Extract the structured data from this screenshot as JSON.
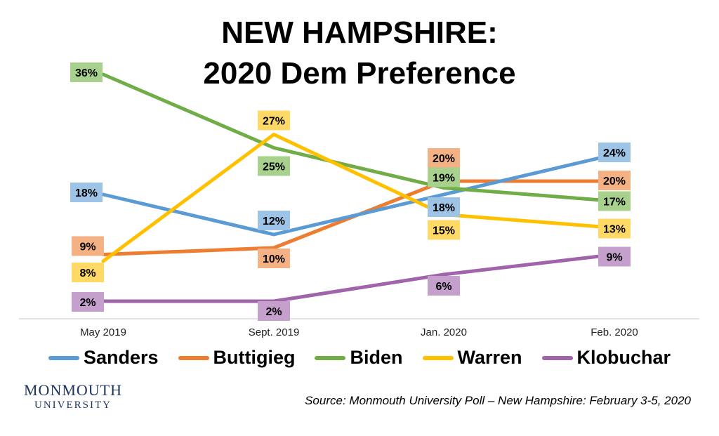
{
  "title_line1": "NEW HAMPSHIRE:",
  "title_line2": "2020 Dem Preference",
  "source": "Source:  Monmouth University Poll – New Hampshire: February 3-5, 2020",
  "logo": {
    "line1": "MONMOUTH",
    "line2": "UNIVERSITY"
  },
  "chart_data": {
    "type": "line",
    "title": "NEW HAMPSHIRE: 2020 Dem Preference",
    "categories": [
      "May 2019",
      "Sept. 2019",
      "Jan. 2020",
      "Feb. 2020"
    ],
    "ylim": [
      0,
      40
    ],
    "grid": false,
    "legend_position": "bottom",
    "series": [
      {
        "name": "Sanders",
        "color": "#5b9bd5",
        "label_color": "#9dc3e6",
        "values": [
          18,
          12,
          18,
          24
        ]
      },
      {
        "name": "Buttigieg",
        "color": "#ed7d31",
        "label_color": "#f4b183",
        "values": [
          9,
          10,
          20,
          20
        ]
      },
      {
        "name": "Biden",
        "color": "#70ad47",
        "label_color": "#a9d18e",
        "values": [
          36,
          25,
          19,
          17
        ]
      },
      {
        "name": "Warren",
        "color": "#ffc000",
        "label_color": "#ffd966",
        "values": [
          8,
          27,
          15,
          13
        ]
      },
      {
        "name": "Klobuchar",
        "color": "#a064ab",
        "label_color": "#c5a0cc",
        "values": [
          2,
          2,
          6,
          9
        ]
      }
    ]
  }
}
